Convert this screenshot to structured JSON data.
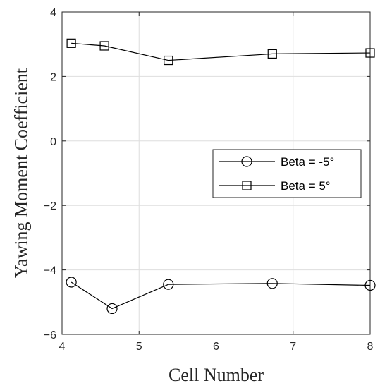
{
  "chart_data": {
    "type": "line",
    "title": "",
    "xlabel": "Cell Number",
    "ylabel": "Yawing Moment Coefficient",
    "xlim": [
      4,
      8
    ],
    "ylim": [
      -6,
      4
    ],
    "xticks": [
      4,
      5,
      6,
      7,
      8
    ],
    "yticks": [
      -6,
      -4,
      -2,
      0,
      2,
      4
    ],
    "xtick_labels": [
      "4",
      "5",
      "6",
      "7",
      "8"
    ],
    "ytick_labels": [
      "−6",
      "−4",
      "−2",
      "0",
      "2",
      "4"
    ],
    "grid": true,
    "legend_position": "right",
    "series": [
      {
        "name": "Beta = -5°",
        "marker": "circle",
        "color": "#000000",
        "x": [
          4.12,
          4.65,
          5.38,
          6.73,
          8.0
        ],
        "y": [
          -4.38,
          -5.2,
          -4.45,
          -4.42,
          -4.48
        ]
      },
      {
        "name": "Beta = 5°",
        "marker": "square",
        "color": "#000000",
        "x": [
          4.12,
          4.55,
          5.38,
          6.73,
          8.0
        ],
        "y": [
          3.03,
          2.95,
          2.5,
          2.7,
          2.73
        ]
      }
    ]
  }
}
